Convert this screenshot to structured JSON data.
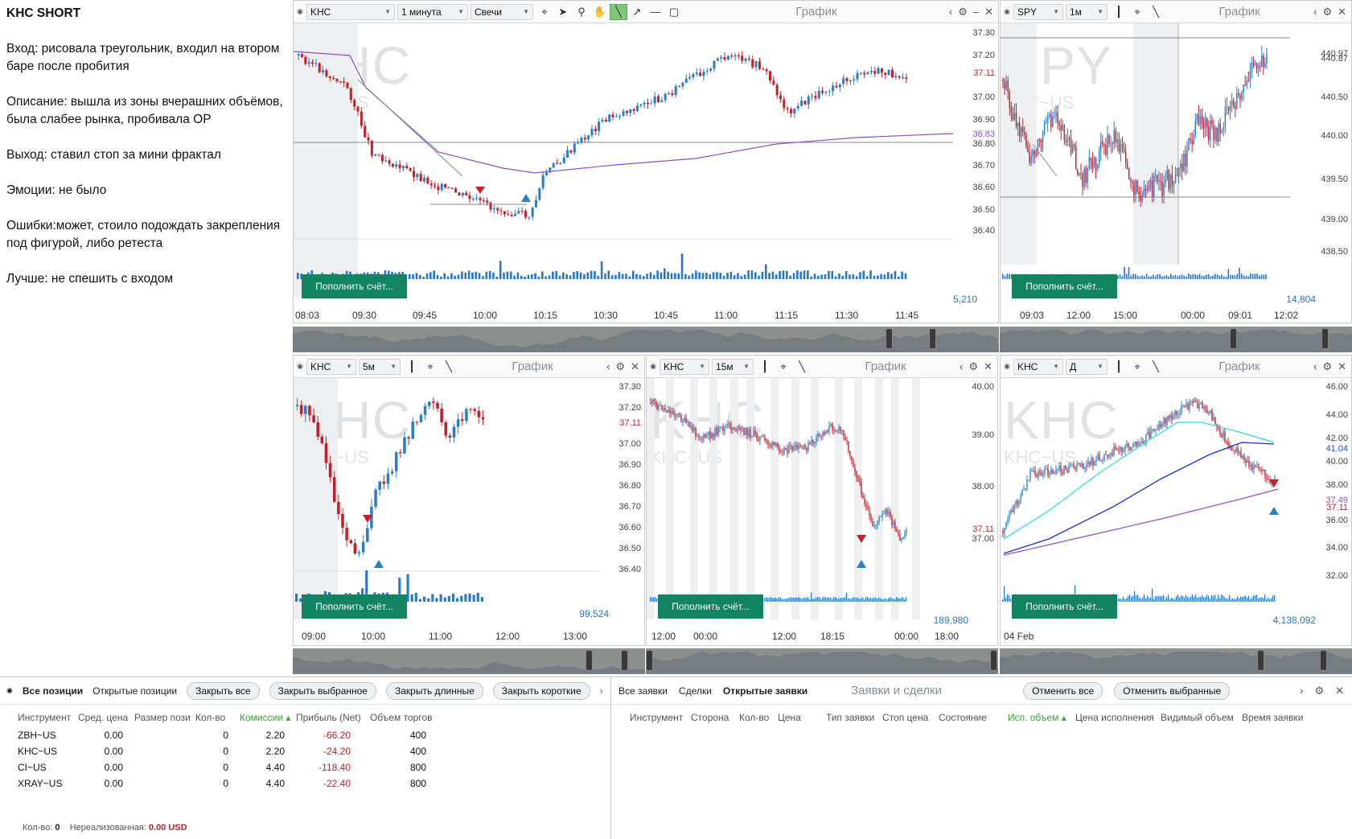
{
  "notes": {
    "title": "KHC SHORT",
    "entry": "Вход: рисовала треугольник, входил на втором баре после пробития",
    "description": "Описание: вышла из зоны вчерашних объёмов, была слабее рынка, пробивала ОР",
    "exit": "Выход: ставил стоп за мини фрактал",
    "emotions": "Эмоции: не было",
    "errors": "Ошибки:может, стоило подождать закрепления под фигурой, либо ретеста",
    "better": "Лучше: не спешить с входом"
  },
  "common": {
    "chart_title": "График",
    "fund_button": "Пополнить счёт...",
    "watermark_symbol": "KHC",
    "watermark_sub": "KHC~US",
    "spy_watermark": "SPY",
    "spy_sub": "SPY~US"
  },
  "panels": [
    {
      "id": "p1",
      "symbol": "KHC",
      "interval": "1 минута",
      "chart_type": "Свечи",
      "y_ticks": [
        "37.30",
        "37.20",
        "37.11",
        "37.00",
        "36.90",
        "36.83",
        "36.80",
        "36.70",
        "36.60",
        "36.50",
        "36.40"
      ],
      "x_ticks": [
        "08:03",
        "09:30",
        "09:45",
        "10:00",
        "10:15",
        "10:30",
        "10:45",
        "11:00",
        "11:15",
        "11:30",
        "11:45"
      ],
      "volume": "5,210"
    },
    {
      "id": "p2",
      "symbol": "SPY",
      "interval": "1м",
      "y_ticks": [
        "440.97",
        "440.87",
        "440.50",
        "440.00",
        "439.50",
        "439.00",
        "438.50"
      ],
      "x_ticks": [
        "09:03",
        "12:00",
        "15:00",
        "00:00",
        "09:01",
        "12:02"
      ],
      "volume": "14,804"
    },
    {
      "id": "p3",
      "symbol": "KHC",
      "interval": "5м",
      "y_ticks": [
        "37.30",
        "37.20",
        "37.11",
        "37.00",
        "36.90",
        "36.80",
        "36.70",
        "36.60",
        "36.50",
        "36.40"
      ],
      "x_ticks": [
        "09:00",
        "10:00",
        "11:00",
        "12:00",
        "13:00"
      ],
      "volume": "99,524"
    },
    {
      "id": "p4",
      "symbol": "KHC",
      "interval": "15м",
      "y_ticks": [
        "40.00",
        "39.00",
        "38.00",
        "37.11",
        "37.00"
      ],
      "x_ticks": [
        "12:00",
        "00:00",
        "12:00",
        "18:15",
        "00:00",
        "18:00"
      ],
      "volume": "189,980"
    },
    {
      "id": "p5",
      "symbol": "KHC",
      "interval": "Д",
      "y_ticks": [
        "46.00",
        "44.00",
        "42.00",
        "41.04",
        "40.00",
        "38.00",
        "37.49",
        "37.11",
        "36.00",
        "34.00",
        "32.00"
      ],
      "x_ticks": [
        "04 Feb"
      ],
      "volume": "4,138,092"
    }
  ],
  "positions": {
    "tabs": [
      "Все позиции",
      "Открытые позиции"
    ],
    "buttons": [
      "Закрыть все",
      "Закрыть выбранное",
      "Закрыть длинные",
      "Закрыть короткие"
    ],
    "columns": [
      "Инструмент",
      "Сред. цена",
      "Размер пози",
      "Кол-во",
      "Комиссии ▴",
      "Прибыль (Net)",
      "Объем торгов"
    ],
    "rows": [
      [
        "ZBH~US",
        "0.00",
        "",
        "0",
        "2.20",
        "-66.20",
        "400"
      ],
      [
        "KHC~US",
        "0.00",
        "",
        "0",
        "2.20",
        "-24.20",
        "400"
      ],
      [
        "CI~US",
        "0.00",
        "",
        "0",
        "4.40",
        "-118.40",
        "800"
      ],
      [
        "XRAY~US",
        "0.00",
        "",
        "0",
        "4.40",
        "-22.40",
        "800"
      ]
    ],
    "footer_qty_label": "Кол-во:",
    "footer_qty": "0",
    "footer_unreal_label": "Нереализованная:",
    "footer_unreal": "0.00 USD"
  },
  "orders": {
    "tabs": [
      "Все заявки",
      "Сделки",
      "Открытые заявки"
    ],
    "title": "Заявки и сделки",
    "buttons": [
      "Отменить все",
      "Отменить выбранные"
    ],
    "columns": [
      "Инструмент",
      "Сторона",
      "Кол-во",
      "Цена",
      "Тип заявки",
      "Стоп цена",
      "Состояние",
      "Исп. объем ▴",
      "Цена исполнения",
      "Видимый объем",
      "Время заявки"
    ]
  },
  "colors": {
    "up": "#2a7fc7",
    "down": "#c8202a",
    "fund": "#138461",
    "sma": "#8a4fd0"
  }
}
